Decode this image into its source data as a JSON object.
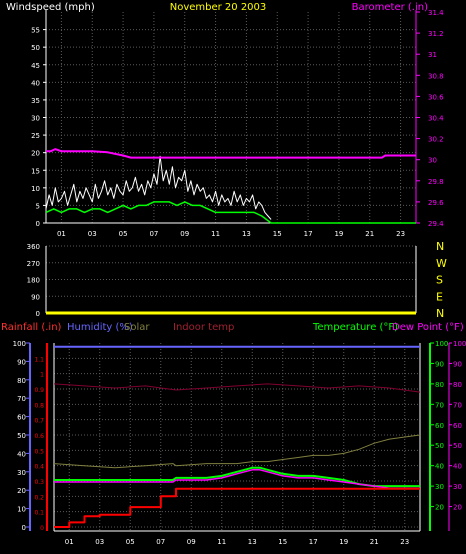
{
  "chart_data": [
    {
      "type": "line",
      "title": "November 20 2003",
      "left_label": "Windspeed (mph)",
      "right_label": "Barometer (.in)",
      "x_ticks": [
        "01",
        "03",
        "05",
        "07",
        "09",
        "11",
        "13",
        "15",
        "17",
        "19",
        "21",
        "23"
      ],
      "xlim": [
        0,
        24
      ],
      "ylim_left": [
        0,
        60
      ],
      "y_ticks_left": [
        "0",
        "5",
        "10",
        "15",
        "20",
        "25",
        "30",
        "35",
        "40",
        "45",
        "50",
        "55"
      ],
      "ylim_right": [
        29.4,
        31.4
      ],
      "y_ticks_right": [
        "29.4",
        "29.6",
        "29.8",
        "30",
        "30.2",
        "30.4",
        "30.6",
        "30.8",
        "31",
        "31.2",
        "31.4"
      ],
      "grid": true,
      "colors": {
        "wind_gust": "#ffffff",
        "wind_avg": "#00ff00",
        "barometer": "#ff00ff",
        "left_axis": "#ffffff",
        "right_axis": "#ff00ff",
        "title": "#ffff00"
      },
      "series": [
        {
          "name": "Barometer (.in)",
          "axis": "right",
          "x": [
            0.0,
            0.3,
            0.6,
            1.0,
            2.0,
            3.0,
            4.0,
            5.0,
            5.5,
            6.0,
            8.0,
            10.0,
            12.0,
            14.0,
            16.0,
            18.0,
            20.0,
            21.8,
            22.0,
            23.0,
            24.0
          ],
          "y": [
            30.08,
            30.08,
            30.1,
            30.08,
            30.08,
            30.08,
            30.07,
            30.04,
            30.02,
            30.02,
            30.02,
            30.02,
            30.02,
            30.02,
            30.02,
            30.02,
            30.02,
            30.02,
            30.04,
            30.04,
            30.04
          ]
        },
        {
          "axis": "left",
          "x": [
            0.0,
            0.2,
            0.4,
            0.6,
            0.8,
            1.0,
            1.2,
            1.4,
            1.6,
            1.8,
            2.0,
            2.2,
            2.4,
            2.6,
            2.8,
            3.0,
            3.2,
            3.4,
            3.6,
            3.8,
            4.0,
            4.2,
            4.4,
            4.6,
            4.8,
            5.0,
            5.2,
            5.4,
            5.6,
            5.8,
            6.0,
            6.2,
            6.4,
            6.6,
            6.8,
            7.0,
            7.2,
            7.4,
            7.6,
            7.8,
            8.0,
            8.2,
            8.4,
            8.6,
            8.8,
            9.0,
            9.2,
            9.4,
            9.6,
            9.8,
            10.0,
            10.2,
            10.4,
            10.6,
            10.8,
            11.0,
            11.2,
            11.4,
            11.6,
            11.8,
            12.0,
            12.2,
            12.4,
            12.6,
            12.8,
            13.0,
            13.2,
            13.4,
            13.6,
            13.8,
            14.0,
            14.2,
            14.4,
            14.6
          ],
          "y": [
            4,
            8,
            5,
            10,
            6,
            7,
            9,
            5,
            8,
            11,
            6,
            9,
            7,
            10,
            8,
            6,
            11,
            7,
            9,
            12,
            8,
            10,
            7,
            11,
            9,
            8,
            12,
            9,
            10,
            13,
            9,
            11,
            8,
            12,
            10,
            14,
            11,
            19,
            12,
            15,
            11,
            16,
            10,
            13,
            12,
            15,
            9,
            12,
            8,
            11,
            9,
            10,
            7,
            8,
            6,
            9,
            5,
            8,
            6,
            7,
            5,
            9,
            6,
            8,
            5,
            7,
            6,
            8,
            4,
            6,
            5,
            3,
            2,
            1
          ]
        },
        {
          "axis": "left",
          "x": [
            0.0,
            0.5,
            1.0,
            1.5,
            2.0,
            2.5,
            3.0,
            3.5,
            4.0,
            4.5,
            5.0,
            5.5,
            6.0,
            6.5,
            7.0,
            7.5,
            8.0,
            8.5,
            9.0,
            9.5,
            10.0,
            10.5,
            11.0,
            11.5,
            12.0,
            12.5,
            13.0,
            13.5,
            14.0,
            14.3,
            14.6,
            15.0,
            24.0
          ],
          "y": [
            3,
            4,
            3,
            4,
            4,
            3,
            4,
            4,
            3,
            4,
            5,
            4,
            5,
            5,
            6,
            6,
            6,
            5,
            6,
            5,
            5,
            4,
            3,
            3,
            3,
            3,
            3,
            3,
            2,
            1,
            0,
            0,
            0
          ]
        }
      ]
    },
    {
      "type": "scatter",
      "right_labels": [
        "N",
        "W",
        "S",
        "E",
        "N"
      ],
      "ylim": [
        0,
        360
      ],
      "y_ticks": [
        "0",
        "90",
        "180",
        "270",
        "360"
      ],
      "xlim": [
        0,
        24
      ],
      "colors": {
        "direction": "#ffff00",
        "labels": "#ffff00",
        "ticks": "#ffffff"
      },
      "series": [
        {
          "axis": "left",
          "x": [
            0,
            1,
            2,
            3,
            4,
            5,
            6,
            7,
            8,
            9,
            10,
            11,
            12,
            13,
            14,
            15,
            16,
            17,
            18,
            19,
            20,
            21,
            22,
            23,
            24
          ],
          "y": [
            0,
            0,
            0,
            0,
            0,
            0,
            0,
            0,
            0,
            0,
            0,
            0,
            0,
            0,
            0,
            0,
            0,
            0,
            0,
            0,
            0,
            0,
            0,
            0,
            0
          ]
        }
      ]
    },
    {
      "type": "line",
      "labels": {
        "rainfall": "Rainfall (.in)",
        "humidity": "Humidity (%)",
        "solar": "Solar",
        "indoor_temp": "Indoor temp",
        "temperature": "Temperature (°F)",
        "dew_point": "Dew Point (°F)"
      },
      "x_ticks": [
        "01",
        "03",
        "05",
        "07",
        "09",
        "11",
        "13",
        "15",
        "17",
        "19",
        "21",
        "23"
      ],
      "xlim": [
        0,
        24
      ],
      "humidity_axis": {
        "ylim": [
          0,
          100
        ],
        "ticks": [
          "0",
          "10",
          "20",
          "30",
          "40",
          "50",
          "60",
          "70",
          "80",
          "90",
          "100"
        ]
      },
      "rain_axis": {
        "ylim": [
          0,
          1.2
        ],
        "ticks": [
          "0",
          "0.1",
          "0.2",
          "0.3",
          "0.4",
          "0.5",
          "0.6",
          "0.7",
          "0.8",
          "0.9",
          "1",
          "1.1"
        ]
      },
      "temp_axis": {
        "ylim": [
          10,
          100
        ],
        "ticks": [
          "20",
          "30",
          "40",
          "50",
          "60",
          "70",
          "80",
          "90",
          "100"
        ]
      },
      "dew_axis": {
        "ylim": [
          10,
          100
        ],
        "ticks": [
          "20",
          "30",
          "40",
          "50",
          "60",
          "70",
          "80",
          "90",
          "100"
        ]
      },
      "grid": true,
      "colors": {
        "humidity": "#6666ff",
        "rainfall": "#ff0000",
        "solar": "#808040",
        "indoor": "#800030",
        "temperature": "#00ff00",
        "dew_point": "#ff00ff",
        "rain_label": "#ff3030",
        "humidity_label": "#6666ff",
        "solar_label": "#808040",
        "indoor_label": "#a02030",
        "temp_label": "#00ff00",
        "dew_label": "#ff00ff"
      },
      "series": [
        {
          "axis": "humidity",
          "x": [
            0,
            24
          ],
          "y": [
            98,
            98
          ]
        },
        {
          "axis": "rain",
          "x": [
            0.0,
            1.0,
            1.0,
            2.0,
            2.0,
            3.0,
            3.0,
            5.0,
            5.0,
            7.0,
            7.0,
            8.0,
            8.0,
            24.0
          ],
          "y": [
            0.0,
            0.0,
            0.03,
            0.03,
            0.07,
            0.07,
            0.08,
            0.08,
            0.13,
            0.13,
            0.2,
            0.2,
            0.25,
            0.25
          ]
        },
        {
          "axis": "temp",
          "x": [
            0,
            2,
            4,
            6,
            7.8,
            8,
            10,
            11,
            12,
            13,
            13.5,
            14,
            15,
            16,
            17,
            18,
            19,
            20,
            21,
            22,
            23,
            24
          ],
          "y": [
            41,
            40,
            39,
            40,
            41,
            40,
            41,
            41,
            41,
            42,
            42,
            42,
            43,
            44,
            45,
            45,
            46,
            48,
            51,
            53,
            54,
            55
          ]
        },
        {
          "axis": "temp",
          "x": [
            0,
            2,
            4,
            6,
            8,
            10,
            12,
            14,
            16,
            18,
            20,
            22,
            24
          ],
          "y": [
            80,
            79,
            78,
            79,
            77,
            78,
            79,
            80,
            79,
            78,
            79,
            78,
            76
          ]
        },
        {
          "axis": "temp",
          "x": [
            0,
            1,
            2,
            3,
            4,
            5,
            6,
            7,
            7.8,
            8,
            9,
            10,
            11,
            11.5,
            12,
            12.5,
            13,
            13.5,
            14,
            14.5,
            15,
            16,
            17,
            18,
            19,
            20,
            21,
            22,
            23,
            24
          ],
          "y": [
            33,
            33,
            33,
            33,
            33,
            33,
            33,
            33,
            33,
            34,
            34,
            34,
            35,
            36,
            37,
            38,
            39,
            39,
            38,
            37,
            36,
            35,
            35,
            34,
            33,
            31,
            30,
            30,
            30,
            30
          ]
        },
        {
          "axis": "temp",
          "x": [
            0,
            1,
            2,
            3,
            4,
            5,
            6,
            7,
            7.8,
            8,
            9,
            10,
            11,
            11.5,
            12,
            12.5,
            13,
            13.5,
            14,
            14.5,
            15,
            16,
            17,
            18,
            19,
            20,
            21,
            22,
            23,
            24
          ],
          "y": [
            32,
            32,
            32,
            32,
            32,
            32,
            32,
            32,
            32,
            33,
            33,
            33,
            34,
            35,
            36,
            37,
            38,
            38,
            37,
            36,
            35,
            34,
            34,
            33,
            32,
            31,
            30,
            29,
            29,
            29
          ]
        }
      ]
    }
  ]
}
